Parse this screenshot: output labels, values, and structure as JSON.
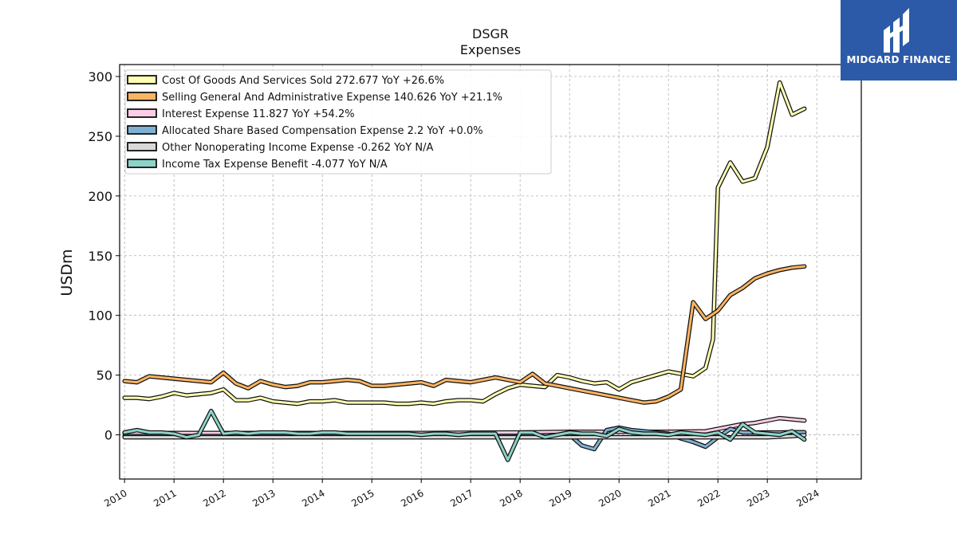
{
  "chart_data": {
    "type": "line",
    "title": "DSGR",
    "subtitle": "Expenses",
    "ylabel": "USDm",
    "xlabel": "",
    "xlim": [
      2009.9,
      2024.9
    ],
    "ylim": [
      -37,
      310
    ],
    "yticks": [
      0,
      50,
      100,
      150,
      200,
      250,
      300
    ],
    "xticks": [
      "2010",
      "2011",
      "2012",
      "2013",
      "2014",
      "2015",
      "2016",
      "2017",
      "2018",
      "2019",
      "2020",
      "2021",
      "2022",
      "2023",
      "2024"
    ],
    "grid": true,
    "legend_position": "top-left",
    "series": [
      {
        "name": "Cost Of Goods And Services Sold  272.677 YoY +26.6%",
        "color": "#ffffb3",
        "points": [
          [
            2010.0,
            31
          ],
          [
            2010.25,
            31
          ],
          [
            2010.5,
            30
          ],
          [
            2010.75,
            32
          ],
          [
            2011.0,
            35
          ],
          [
            2011.25,
            33
          ],
          [
            2011.5,
            34
          ],
          [
            2011.75,
            35
          ],
          [
            2012.0,
            38
          ],
          [
            2012.25,
            29
          ],
          [
            2012.5,
            29
          ],
          [
            2012.75,
            31
          ],
          [
            2013.0,
            28
          ],
          [
            2013.25,
            27
          ],
          [
            2013.5,
            26
          ],
          [
            2013.75,
            28
          ],
          [
            2014.0,
            28
          ],
          [
            2014.25,
            29
          ],
          [
            2014.5,
            27
          ],
          [
            2014.75,
            27
          ],
          [
            2015.0,
            27
          ],
          [
            2015.25,
            27
          ],
          [
            2015.5,
            26
          ],
          [
            2015.75,
            26
          ],
          [
            2016.0,
            27
          ],
          [
            2016.25,
            26
          ],
          [
            2016.5,
            28
          ],
          [
            2016.75,
            29
          ],
          [
            2017.0,
            29
          ],
          [
            2017.25,
            28
          ],
          [
            2017.5,
            34
          ],
          [
            2017.75,
            39
          ],
          [
            2018.0,
            42
          ],
          [
            2018.25,
            41
          ],
          [
            2018.5,
            40
          ],
          [
            2018.75,
            50
          ],
          [
            2019.0,
            48
          ],
          [
            2019.25,
            45
          ],
          [
            2019.5,
            43
          ],
          [
            2019.75,
            44
          ],
          [
            2020.0,
            38
          ],
          [
            2020.25,
            44
          ],
          [
            2020.5,
            47
          ],
          [
            2020.75,
            50
          ],
          [
            2021.0,
            53
          ],
          [
            2021.25,
            51
          ],
          [
            2021.5,
            49
          ],
          [
            2021.75,
            56
          ],
          [
            2021.9,
            80
          ],
          [
            2022.0,
            207
          ],
          [
            2022.25,
            228
          ],
          [
            2022.5,
            212
          ],
          [
            2022.75,
            215
          ],
          [
            2023.0,
            241
          ],
          [
            2023.25,
            295
          ],
          [
            2023.5,
            268
          ],
          [
            2023.75,
            273
          ]
        ]
      },
      {
        "name": "Selling General And Administrative Expense  140.626 YoY +21.1%",
        "color": "#fdb462",
        "points": [
          [
            2010.0,
            45
          ],
          [
            2010.25,
            44
          ],
          [
            2010.5,
            49
          ],
          [
            2010.75,
            48
          ],
          [
            2011.0,
            47
          ],
          [
            2011.25,
            46
          ],
          [
            2011.5,
            45
          ],
          [
            2011.75,
            44
          ],
          [
            2012.0,
            52
          ],
          [
            2012.25,
            43
          ],
          [
            2012.5,
            39
          ],
          [
            2012.75,
            45
          ],
          [
            2013.0,
            42
          ],
          [
            2013.25,
            40
          ],
          [
            2013.5,
            41
          ],
          [
            2013.75,
            44
          ],
          [
            2014.0,
            44
          ],
          [
            2014.25,
            45
          ],
          [
            2014.5,
            46
          ],
          [
            2014.75,
            45
          ],
          [
            2015.0,
            41
          ],
          [
            2015.25,
            41
          ],
          [
            2015.5,
            42
          ],
          [
            2015.75,
            43
          ],
          [
            2016.0,
            44
          ],
          [
            2016.25,
            41
          ],
          [
            2016.5,
            46
          ],
          [
            2016.75,
            45
          ],
          [
            2017.0,
            44
          ],
          [
            2017.25,
            46
          ],
          [
            2017.5,
            48
          ],
          [
            2017.75,
            46
          ],
          [
            2018.0,
            44
          ],
          [
            2018.25,
            51
          ],
          [
            2018.5,
            43
          ],
          [
            2018.75,
            41
          ],
          [
            2019.0,
            39
          ],
          [
            2019.25,
            37
          ],
          [
            2019.5,
            35
          ],
          [
            2019.75,
            33
          ],
          [
            2020.0,
            31
          ],
          [
            2020.25,
            29
          ],
          [
            2020.5,
            27
          ],
          [
            2020.75,
            28
          ],
          [
            2021.0,
            32
          ],
          [
            2021.25,
            38
          ],
          [
            2021.5,
            111
          ],
          [
            2021.75,
            97
          ],
          [
            2022.0,
            104
          ],
          [
            2022.25,
            117
          ],
          [
            2022.5,
            123
          ],
          [
            2022.75,
            131
          ],
          [
            2023.0,
            135
          ],
          [
            2023.25,
            138
          ],
          [
            2023.5,
            140
          ],
          [
            2023.75,
            141
          ]
        ]
      },
      {
        "name": "Interest Expense  11.827 YoY +54.2%",
        "color": "#fccde5",
        "points": [
          [
            2010.0,
            1.5
          ],
          [
            2011.0,
            1.5
          ],
          [
            2012.0,
            1.5
          ],
          [
            2013.0,
            1.5
          ],
          [
            2014.0,
            1.5
          ],
          [
            2015.0,
            1.5
          ],
          [
            2016.0,
            1.5
          ],
          [
            2017.0,
            1.8
          ],
          [
            2018.0,
            2
          ],
          [
            2019.0,
            2.5
          ],
          [
            2020.0,
            2.5
          ],
          [
            2021.0,
            2.5
          ],
          [
            2021.75,
            3
          ],
          [
            2022.0,
            5
          ],
          [
            2022.25,
            7
          ],
          [
            2022.5,
            9
          ],
          [
            2022.75,
            10
          ],
          [
            2023.0,
            12
          ],
          [
            2023.25,
            14
          ],
          [
            2023.5,
            13
          ],
          [
            2023.75,
            12
          ]
        ]
      },
      {
        "name": "Allocated Share Based Compensation Expense  2.2 YoY +0.0%",
        "color": "#80b1d3",
        "points": [
          [
            2010.0,
            -1
          ],
          [
            2011.0,
            -1
          ],
          [
            2012.0,
            -1
          ],
          [
            2013.0,
            -1
          ],
          [
            2014.0,
            -1
          ],
          [
            2015.0,
            -1
          ],
          [
            2016.0,
            -1
          ],
          [
            2017.0,
            -1
          ],
          [
            2018.0,
            -1
          ],
          [
            2018.75,
            0
          ],
          [
            2019.0,
            0
          ],
          [
            2019.25,
            -9
          ],
          [
            2019.5,
            -12
          ],
          [
            2019.75,
            4
          ],
          [
            2020.0,
            6
          ],
          [
            2020.25,
            4
          ],
          [
            2020.5,
            3
          ],
          [
            2020.75,
            2
          ],
          [
            2021.0,
            1
          ],
          [
            2021.25,
            -3
          ],
          [
            2021.5,
            -6
          ],
          [
            2021.75,
            -10
          ],
          [
            2022.0,
            -2
          ],
          [
            2022.25,
            5
          ],
          [
            2022.5,
            2
          ],
          [
            2022.75,
            2
          ],
          [
            2023.0,
            2
          ],
          [
            2023.25,
            2
          ],
          [
            2023.5,
            2.2
          ],
          [
            2023.75,
            2.2
          ]
        ]
      },
      {
        "name": "Other Nonoperating Income Expense  -0.262 YoY N/A",
        "color": "#d9d9d9",
        "points": [
          [
            2010.0,
            -2
          ],
          [
            2011.0,
            -2
          ],
          [
            2012.0,
            -2
          ],
          [
            2013.0,
            -2
          ],
          [
            2014.0,
            -2
          ],
          [
            2015.0,
            -2
          ],
          [
            2016.0,
            -2
          ],
          [
            2017.0,
            -2
          ],
          [
            2018.0,
            -2
          ],
          [
            2019.0,
            -2
          ],
          [
            2020.0,
            -2
          ],
          [
            2021.0,
            -2
          ],
          [
            2022.0,
            -2
          ],
          [
            2023.0,
            -2
          ],
          [
            2023.5,
            -1
          ],
          [
            2023.75,
            -0.3
          ]
        ]
      },
      {
        "name": "Income Tax Expense Benefit  -4.077 YoY N/A",
        "color": "#8dd3c7",
        "points": [
          [
            2010.0,
            2
          ],
          [
            2010.25,
            4
          ],
          [
            2010.5,
            2
          ],
          [
            2010.75,
            2
          ],
          [
            2011.0,
            1
          ],
          [
            2011.25,
            -2
          ],
          [
            2011.5,
            0
          ],
          [
            2011.75,
            20
          ],
          [
            2012.0,
            1
          ],
          [
            2012.25,
            2
          ],
          [
            2012.5,
            1
          ],
          [
            2012.75,
            2
          ],
          [
            2013.0,
            2
          ],
          [
            2013.25,
            2
          ],
          [
            2013.5,
            1
          ],
          [
            2013.75,
            1
          ],
          [
            2014.0,
            2
          ],
          [
            2014.25,
            2
          ],
          [
            2014.5,
            1
          ],
          [
            2014.75,
            1
          ],
          [
            2015.0,
            1
          ],
          [
            2015.25,
            1
          ],
          [
            2015.5,
            1
          ],
          [
            2015.75,
            1
          ],
          [
            2016.0,
            0
          ],
          [
            2016.25,
            1
          ],
          [
            2016.5,
            1
          ],
          [
            2016.75,
            0
          ],
          [
            2017.0,
            1
          ],
          [
            2017.25,
            1
          ],
          [
            2017.5,
            1
          ],
          [
            2017.75,
            -21
          ],
          [
            2018.0,
            2
          ],
          [
            2018.25,
            2
          ],
          [
            2018.5,
            -2
          ],
          [
            2018.75,
            0
          ],
          [
            2019.0,
            2
          ],
          [
            2019.25,
            1
          ],
          [
            2019.5,
            1
          ],
          [
            2019.75,
            -1
          ],
          [
            2020.0,
            5
          ],
          [
            2020.25,
            2
          ],
          [
            2020.5,
            1
          ],
          [
            2020.75,
            1
          ],
          [
            2021.0,
            0
          ],
          [
            2021.25,
            2
          ],
          [
            2021.5,
            1
          ],
          [
            2021.75,
            0
          ],
          [
            2022.0,
            2
          ],
          [
            2022.25,
            -4
          ],
          [
            2022.5,
            9
          ],
          [
            2022.75,
            2
          ],
          [
            2023.0,
            1
          ],
          [
            2023.25,
            0
          ],
          [
            2023.5,
            3
          ],
          [
            2023.75,
            -4
          ]
        ]
      }
    ]
  },
  "brand": {
    "logo_text": "MIDGARD FINANCE",
    "logo_color": "#2c5aa8"
  }
}
